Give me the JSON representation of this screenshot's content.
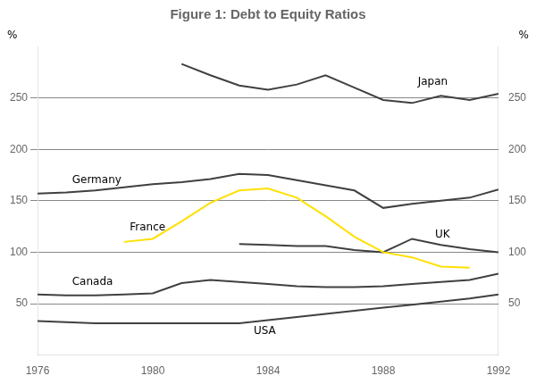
{
  "chart_data": {
    "type": "line",
    "title": "Figure 1: Debt to Equity Ratios",
    "xlim": [
      1976,
      1992
    ],
    "xticks": [
      1976,
      1980,
      1984,
      1988,
      1992
    ],
    "ylim": [
      0,
      300
    ],
    "yticks": [
      50,
      100,
      150,
      200,
      250
    ],
    "y2lim": [
      0,
      300
    ],
    "y2ticks": [
      50,
      100,
      150,
      200,
      250
    ],
    "ylabel": "%",
    "y2label": "%",
    "grid": true,
    "series": [
      {
        "name": "Japan",
        "color": "#404040",
        "x": [
          1981,
          1982,
          1983,
          1984,
          1985,
          1986,
          1987,
          1988,
          1989,
          1990,
          1991,
          1992
        ],
        "values": [
          283,
          272,
          262,
          258,
          263,
          272,
          260,
          248,
          245,
          252,
          248,
          254
        ]
      },
      {
        "name": "Germany",
        "color": "#404040",
        "x": [
          1976,
          1977,
          1978,
          1979,
          1980,
          1981,
          1982,
          1983,
          1984,
          1985,
          1986,
          1987,
          1988,
          1989,
          1990,
          1991,
          1992
        ],
        "values": [
          157,
          158,
          160,
          163,
          166,
          168,
          171,
          176,
          175,
          170,
          165,
          160,
          143,
          147,
          150,
          153,
          161
        ]
      },
      {
        "name": "France",
        "color": "#FFE000",
        "x": [
          1979,
          1980,
          1981,
          1982,
          1983,
          1984,
          1985,
          1986,
          1987,
          1988,
          1989,
          1990,
          1991
        ],
        "values": [
          110,
          113,
          130,
          148,
          160,
          162,
          153,
          135,
          115,
          100,
          95,
          86,
          85
        ]
      },
      {
        "name": "UK",
        "color": "#404040",
        "x": [
          1983,
          1984,
          1985,
          1986,
          1987,
          1988,
          1989,
          1990,
          1991,
          1992
        ],
        "values": [
          108,
          107,
          106,
          106,
          102,
          100,
          113,
          107,
          103,
          100
        ]
      },
      {
        "name": "Canada",
        "color": "#404040",
        "x": [
          1976,
          1977,
          1978,
          1979,
          1980,
          1981,
          1982,
          1983,
          1984,
          1985,
          1986,
          1987,
          1988,
          1989,
          1990,
          1991,
          1992
        ],
        "values": [
          59,
          58,
          58,
          59,
          60,
          70,
          73,
          71,
          69,
          67,
          66,
          66,
          67,
          69,
          71,
          73,
          79
        ]
      },
      {
        "name": "USA",
        "color": "#404040",
        "x": [
          1976,
          1977,
          1978,
          1979,
          1980,
          1981,
          1982,
          1983,
          1984,
          1985,
          1986,
          1987,
          1988,
          1989,
          1990,
          1991,
          1992
        ],
        "values": [
          33,
          32,
          31,
          31,
          31,
          31,
          31,
          31,
          34,
          37,
          40,
          43,
          46,
          49,
          52,
          55,
          59
        ]
      }
    ],
    "annotations": [
      {
        "text": "Japan",
        "x": 1989.2,
        "y": 265
      },
      {
        "text": "Germany",
        "x": 1977.2,
        "y": 170
      },
      {
        "text": "France",
        "x": 1979.2,
        "y": 124
      },
      {
        "text": "UK",
        "x": 1989.8,
        "y": 117
      },
      {
        "text": "Canada",
        "x": 1977.2,
        "y": 71
      },
      {
        "text": "USA",
        "x": 1983.5,
        "y": 23
      }
    ]
  }
}
